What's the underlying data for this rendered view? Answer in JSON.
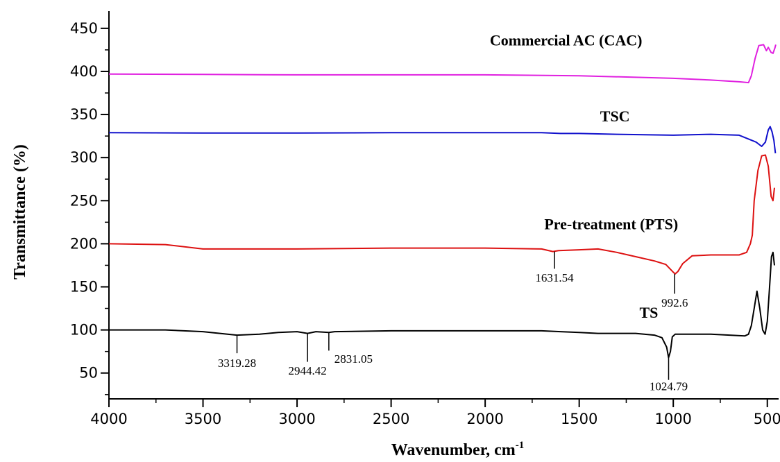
{
  "chart_data": {
    "type": "line",
    "title": "",
    "xlabel": "Wavenumber, cm",
    "xlabel_superscript": "-1",
    "ylabel": "Transmittance (%)",
    "xlim": [
      4000,
      440
    ],
    "ylim": [
      20,
      470
    ],
    "x_reversed": true,
    "xticks": [
      4000,
      3500,
      3000,
      2500,
      2000,
      1500,
      1000,
      500
    ],
    "xtick_labels": [
      "4000",
      "3500",
      "3000",
      "2500",
      "2000",
      "1500",
      "1000",
      "500"
    ],
    "yticks": [
      50,
      100,
      150,
      200,
      250,
      300,
      350,
      400,
      450
    ],
    "ytick_labels": [
      "50",
      "100",
      "150",
      "200",
      "250",
      "300",
      "350",
      "400",
      "450"
    ],
    "grid": false,
    "legend": "none",
    "series": [
      {
        "name": "Commercial AC (CAC)",
        "color": "#e020e0",
        "points": [
          [
            4000,
            397
          ],
          [
            3500,
            396.5
          ],
          [
            3000,
            396
          ],
          [
            2500,
            396
          ],
          [
            2000,
            396
          ],
          [
            1500,
            395
          ],
          [
            1000,
            392
          ],
          [
            800,
            390
          ],
          [
            650,
            388
          ],
          [
            600,
            387
          ],
          [
            585,
            395
          ],
          [
            565,
            415
          ],
          [
            545,
            430
          ],
          [
            520,
            431
          ],
          [
            505,
            424
          ],
          [
            495,
            428
          ],
          [
            480,
            422
          ],
          [
            470,
            421
          ],
          [
            460,
            427
          ],
          [
            455,
            431
          ]
        ]
      },
      {
        "name": "TSC",
        "color": "#1010cc",
        "points": [
          [
            4000,
            329
          ],
          [
            3500,
            328.5
          ],
          [
            3000,
            328.5
          ],
          [
            2500,
            329
          ],
          [
            2000,
            329
          ],
          [
            1700,
            329
          ],
          [
            1600,
            328
          ],
          [
            1500,
            328
          ],
          [
            1300,
            327
          ],
          [
            1000,
            326
          ],
          [
            800,
            327
          ],
          [
            650,
            326
          ],
          [
            560,
            318
          ],
          [
            530,
            313
          ],
          [
            510,
            318
          ],
          [
            495,
            332
          ],
          [
            485,
            336
          ],
          [
            475,
            330
          ],
          [
            465,
            320
          ],
          [
            457,
            305
          ]
        ]
      },
      {
        "name": "Pre-treatment (PTS)",
        "color": "#dd1111",
        "points": [
          [
            4000,
            200
          ],
          [
            3700,
            199
          ],
          [
            3500,
            194
          ],
          [
            3000,
            194
          ],
          [
            2500,
            195
          ],
          [
            2000,
            195
          ],
          [
            1700,
            194
          ],
          [
            1640,
            191
          ],
          [
            1610,
            192
          ],
          [
            1500,
            193
          ],
          [
            1400,
            194
          ],
          [
            1300,
            190
          ],
          [
            1200,
            185
          ],
          [
            1100,
            180
          ],
          [
            1040,
            176
          ],
          [
            1000,
            167
          ],
          [
            990,
            165
          ],
          [
            975,
            168
          ],
          [
            950,
            177
          ],
          [
            900,
            186
          ],
          [
            800,
            187
          ],
          [
            650,
            187
          ],
          [
            610,
            190
          ],
          [
            590,
            200
          ],
          [
            580,
            210
          ],
          [
            570,
            250
          ],
          [
            550,
            285
          ],
          [
            530,
            302
          ],
          [
            510,
            303
          ],
          [
            495,
            290
          ],
          [
            480,
            255
          ],
          [
            470,
            250
          ],
          [
            462,
            265
          ]
        ]
      },
      {
        "name": "TS",
        "color": "#000000",
        "points": [
          [
            4000,
            100
          ],
          [
            3700,
            100
          ],
          [
            3500,
            98
          ],
          [
            3320,
            94
          ],
          [
            3200,
            95
          ],
          [
            3100,
            97
          ],
          [
            3000,
            98
          ],
          [
            2944,
            96
          ],
          [
            2900,
            98
          ],
          [
            2831,
            97
          ],
          [
            2800,
            98
          ],
          [
            2500,
            99
          ],
          [
            2000,
            99
          ],
          [
            1700,
            99
          ],
          [
            1600,
            98
          ],
          [
            1500,
            97
          ],
          [
            1400,
            96
          ],
          [
            1200,
            96
          ],
          [
            1100,
            94
          ],
          [
            1060,
            91
          ],
          [
            1035,
            80
          ],
          [
            1025,
            68
          ],
          [
            1015,
            75
          ],
          [
            1005,
            92
          ],
          [
            990,
            95
          ],
          [
            800,
            95
          ],
          [
            620,
            93
          ],
          [
            600,
            95
          ],
          [
            585,
            105
          ],
          [
            570,
            125
          ],
          [
            555,
            145
          ],
          [
            540,
            125
          ],
          [
            525,
            100
          ],
          [
            512,
            95
          ],
          [
            500,
            110
          ],
          [
            488,
            150
          ],
          [
            478,
            185
          ],
          [
            470,
            190
          ],
          [
            462,
            175
          ]
        ]
      }
    ],
    "series_labels": [
      {
        "text": "Commercial AC (CAC)",
        "x": 1570,
        "y": 430
      },
      {
        "text": "TSC",
        "x": 1310,
        "y": 342
      },
      {
        "text": "Pre-treatment (PTS)",
        "x": 1330,
        "y": 217
      },
      {
        "text": "TS",
        "x": 1130,
        "y": 114
      }
    ],
    "annotations": [
      {
        "text": "1631.54",
        "x": 1631.54,
        "y_top": 191,
        "y_bottom": 171,
        "label_x": 1631.54,
        "label_y": 156
      },
      {
        "text": "992.6",
        "x": 992.6,
        "y_top": 165,
        "y_bottom": 142,
        "label_x": 992.6,
        "label_y": 127
      },
      {
        "text": "3319.28",
        "x": 3319.28,
        "y_top": 94,
        "y_bottom": 73,
        "label_x": 3319.28,
        "label_y": 57
      },
      {
        "text": "2944.42",
        "x": 2944.42,
        "y_top": 96,
        "y_bottom": 63,
        "label_x": 2944.42,
        "label_y": 48
      },
      {
        "text": "2831.05",
        "x": 2831.05,
        "y_top": 97,
        "y_bottom": 76,
        "label_x": 2700,
        "label_y": 62
      },
      {
        "text": "1024.79",
        "x": 1024.79,
        "y_top": 68,
        "y_bottom": 42,
        "label_x": 1024.79,
        "label_y": 30
      }
    ]
  }
}
